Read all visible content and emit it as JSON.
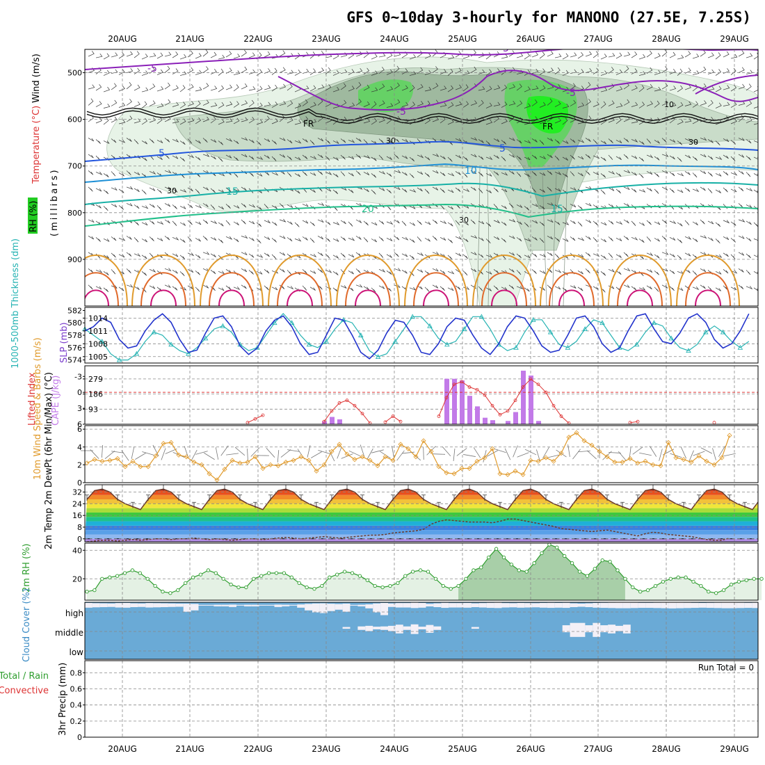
{
  "title": "GFS 0~10day 3-hourly for MANONO (27.5E, 7.25S)",
  "date_labels": [
    "20AUG",
    "21AUG",
    "22AUG",
    "23AUG",
    "24AUG",
    "25AUG",
    "26AUG",
    "27AUG",
    "28AUG",
    "29AUG"
  ],
  "colors": {
    "purple": "#8a1fb8",
    "teal": "#26b3b3",
    "blue": "#2233cc",
    "red": "#dd3333",
    "orange": "#e09a2b",
    "green": "#2e9d2e",
    "cloud": "#6aaad6",
    "cape": "#c27ae8",
    "rh_green": "#22cc22",
    "gray": "#808080"
  },
  "chart_data": [
    {
      "type": "contour",
      "id": "upper_air",
      "ylabel": "(millibars)",
      "legend_labels": [
        "Wind (m/s)",
        "Temperature (°C)",
        "RH (%)"
      ],
      "yticks": [
        500,
        600,
        700,
        800,
        900
      ],
      "ylim": [
        1000,
        450
      ],
      "temperature_labels": [
        "-5",
        "-5",
        "-5",
        "-5",
        "5",
        "5",
        "10",
        "15",
        "15",
        "20"
      ],
      "freezing_label": "FR",
      "rh_labels": [
        "30",
        "30",
        "30",
        "30",
        "10"
      ],
      "freezing_level_mb": 595
    },
    {
      "type": "line",
      "id": "slp_thickness",
      "series": [
        {
          "name": "SLP (mb)",
          "yticks": [
            1005,
            1008,
            1011,
            1014
          ],
          "ylim": [
            1003.5,
            1016.5
          ],
          "values": [
            1011,
            1012,
            1014,
            1013,
            1009,
            1007,
            1007.5,
            1011,
            1013.5,
            1015,
            1013,
            1009,
            1006,
            1006.5,
            1010.5,
            1014,
            1014.5,
            1012,
            1007.5,
            1005.5,
            1007,
            1011,
            1013.5,
            1014.5,
            1012,
            1008,
            1005.5,
            1006,
            1010,
            1014,
            1013.5,
            1010,
            1006,
            1004.5,
            1006.5,
            1010.5,
            1013.5,
            1013,
            1010,
            1006,
            1005.5,
            1008,
            1012,
            1014,
            1013.5,
            1010,
            1007,
            1005.5,
            1008,
            1012,
            1014.5,
            1014,
            1011,
            1007.5,
            1006,
            1006.5,
            1010,
            1014,
            1014.5,
            1012,
            1008,
            1006,
            1007,
            1011,
            1014.5,
            1015,
            1011.5,
            1008.5,
            1008,
            1010.5,
            1014,
            1015,
            1013,
            1009,
            1007,
            1008,
            1011,
            1015
          ]
        },
        {
          "name": "1000-500mb Thickness (dm)",
          "yticks": [
            574,
            576,
            578,
            580,
            582
          ],
          "ylim": [
            573.5,
            582.5
          ],
          "values": [
            579,
            578,
            577,
            575,
            574,
            574,
            575,
            577,
            578.5,
            578,
            576.5,
            575.5,
            575,
            576,
            577.5,
            579,
            579.5,
            578.5,
            576.5,
            575.5,
            576,
            578,
            580,
            581.5,
            580,
            578,
            576.5,
            576,
            577,
            579,
            580.5,
            580,
            578,
            575.5,
            574.5,
            575,
            577,
            579,
            581,
            581,
            579.5,
            577.5,
            576.5,
            577,
            579,
            581,
            581,
            579,
            576.5,
            575.5,
            576,
            578.5,
            580.5,
            580.5,
            578.5,
            576.5,
            576,
            577,
            579,
            580.5,
            580,
            578,
            576,
            575.5,
            576.5,
            578.5,
            580,
            579.5,
            577.5,
            576,
            575.5,
            576.5,
            578.5,
            579.5,
            578.5,
            577,
            576,
            577
          ]
        }
      ]
    },
    {
      "type": "bar",
      "id": "instability",
      "series": [
        {
          "name": "Lifted Index",
          "yticks": [
            -3,
            0,
            3,
            6
          ],
          "ylabels": [
            "-3",
            "0",
            "3",
            "6"
          ],
          "ylim": [
            -5,
            6
          ],
          "values": [],
          "segments": [
            {
              "start": 21,
              "values": [
                5.7,
                5,
                4.3
              ]
            },
            {
              "start": 31,
              "values": [
                5.5,
                3.5,
                2,
                1.5,
                2.5,
                4,
                5.8
              ]
            },
            {
              "start": 39,
              "values": [
                5.6,
                4.5,
                5.5
              ]
            },
            {
              "start": 46,
              "values": [
                4.5,
                1,
                -1.5,
                -2,
                -1,
                -0.5,
                0.5,
                2.5,
                4.2,
                3.5,
                1.5,
                -1,
                -2.5,
                -1.5,
                0,
                2.5,
                4.5,
                5.8
              ]
            },
            {
              "start": 71,
              "values": [
                5.7,
                5.5
              ]
            },
            {
              "start": 82,
              "values": [
                5.7
              ]
            }
          ]
        },
        {
          "name": "CAPE (J/kg)",
          "yticks": [
            93,
            186,
            279
          ],
          "ylim": [
            0,
            360
          ],
          "bars": [
            {
              "i": 31,
              "v": 18
            },
            {
              "i": 32,
              "v": 45
            },
            {
              "i": 33,
              "v": 30
            },
            {
              "i": 47,
              "v": 280
            },
            {
              "i": 48,
              "v": 280
            },
            {
              "i": 49,
              "v": 270
            },
            {
              "i": 50,
              "v": 175
            },
            {
              "i": 51,
              "v": 110
            },
            {
              "i": 52,
              "v": 40
            },
            {
              "i": 53,
              "v": 25
            },
            {
              "i": 55,
              "v": 20
            },
            {
              "i": 56,
              "v": 75
            },
            {
              "i": 57,
              "v": 330
            },
            {
              "i": 58,
              "v": 300
            },
            {
              "i": 59,
              "v": 20
            }
          ]
        }
      ]
    },
    {
      "type": "line",
      "id": "wind10m",
      "ylabel": "10m Wind Speed & Barbs (m/s)",
      "yticks": [
        0,
        2,
        4,
        6
      ],
      "ylim": [
        0,
        6.4
      ],
      "values": [
        2.2,
        2.6,
        2.4,
        2.5,
        2.7,
        1.8,
        2.4,
        1.8,
        1.8,
        3,
        4.4,
        4.5,
        3.1,
        2.9,
        2.3,
        2,
        1,
        0.3,
        1.5,
        2.5,
        2.2,
        2.3,
        2.9,
        1.6,
        2,
        1.9,
        2.3,
        2.5,
        2.9,
        2.5,
        1.3,
        2,
        3.5,
        4.3,
        3.2,
        2.6,
        2.9,
        2.5,
        1.9,
        2.9,
        2.5,
        4.3,
        3.8,
        2.9,
        4.7,
        3.5,
        1.8,
        1.1,
        1,
        1.6,
        1.6,
        2.4,
        2.8,
        3.8,
        1,
        0.9,
        1.3,
        0.9,
        2.5,
        2.4,
        2.8,
        2.4,
        3.3,
        5.1,
        5.6,
        4.7,
        4.2,
        3.5,
        2.9,
        2.3,
        2.3,
        2.7,
        2.2,
        2.4,
        2,
        1.9,
        4.5,
        2.8,
        2.6,
        2.3,
        3,
        2.4,
        2,
        2.8,
        5.3
      ]
    },
    {
      "type": "area",
      "id": "temp2m",
      "ylabel": "2m Temp 2m DewPt (6hr Min/Max) (°C)",
      "yticks": [
        0,
        8,
        16,
        24,
        32
      ],
      "ylabels": [
        "0",
        "8",
        "16",
        "24",
        "32"
      ],
      "ylim": [
        -2,
        37
      ],
      "temperature_cycle": [
        27,
        33,
        34,
        32,
        27,
        24,
        22,
        20
      ],
      "dewpoint": [
        -2,
        -1.5,
        -1,
        -1,
        -1.5,
        -1,
        -0.5,
        -1,
        -0.5,
        0,
        0,
        -0.5,
        0,
        0,
        0.5,
        0,
        -0.5,
        0,
        -0.5,
        -1,
        -0.5,
        0,
        0,
        -0.5,
        0,
        0.5,
        1,
        0.5,
        0,
        0.5,
        1,
        1.5,
        1,
        0.5,
        1,
        1.5,
        2,
        2.5,
        2.5,
        3,
        4,
        4.5,
        5,
        5.5,
        6.5,
        10,
        12,
        13,
        12.5,
        12,
        11.5,
        11.5,
        11.5,
        11,
        12,
        13.5,
        13.5,
        12.5,
        11.5,
        10.5,
        9.5,
        8.5,
        7,
        6.5,
        6,
        5.5,
        5,
        5.5,
        6,
        5,
        4,
        3,
        2,
        3.5,
        4.5,
        4,
        3,
        2.5,
        2,
        1.5,
        0.5,
        -0.5,
        -1,
        -1,
        0.5
      ]
    },
    {
      "type": "area",
      "id": "rh2m",
      "ylabel": "2m RH (%)",
      "yticks": [
        20,
        40
      ],
      "ylim": [
        5,
        45
      ],
      "values": [
        11,
        12,
        20,
        21,
        22,
        24,
        26,
        24,
        20,
        15,
        11,
        10,
        12,
        17,
        21,
        23,
        26,
        24,
        20,
        16,
        14,
        14,
        20,
        22,
        24,
        24,
        24,
        21,
        17,
        14,
        13,
        15,
        21,
        23,
        25,
        24,
        22,
        19,
        15,
        14,
        15,
        17,
        22,
        25,
        26,
        25,
        20,
        15,
        13,
        15,
        20,
        26,
        28,
        35,
        41,
        35,
        30,
        26,
        25,
        31,
        38,
        44,
        42,
        36,
        31,
        25,
        22,
        27,
        33,
        32,
        26,
        20,
        14,
        11,
        12,
        15,
        18,
        20,
        21,
        21,
        18,
        15,
        11,
        10,
        12,
        16,
        18,
        19,
        20,
        20
      ]
    },
    {
      "type": "bar",
      "id": "cloud_cover",
      "ylabel": "Cloud Cover (%)",
      "level_labels": [
        "high",
        "middle",
        "low"
      ],
      "high_clear_fraction": [
        0.75,
        0.65,
        0.6,
        0.55,
        0.7,
        0.75,
        0.6,
        0.55,
        0.7,
        0.65,
        0.6,
        0.55,
        0.5,
        0.5,
        0.4,
        0.05,
        0.05,
        0.1,
        0.1,
        0.15,
        0.05,
        0.1,
        0.1,
        0.05,
        0.05,
        0.15,
        0.1,
        0.05,
        0.2,
        0.4,
        0.55,
        0.6,
        0.45,
        0.35,
        0.5,
        0.05,
        0.1,
        0.25,
        0.55,
        0.75,
        0.55,
        0.7,
        0.7,
        0.85,
        0.75,
        0.4,
        0.6,
        0.8,
        0.7,
        0.7,
        0.75,
        0.6,
        0.7,
        0.8,
        0.85,
        0.7,
        0.65,
        0.75,
        0.7,
        0.65,
        0.75,
        0.8,
        0.75,
        0.8,
        0.6,
        0.5,
        0.6,
        0.75,
        0.8,
        0.85,
        0.9,
        0.9,
        0.85,
        0.8,
        0.8,
        0.85,
        0.9,
        0.95,
        0.9,
        0.85,
        0.8,
        0.75,
        0.8,
        0.85,
        0.9,
        0.9,
        0.85,
        0.8,
        0.85
      ],
      "mid_clear_fraction": [
        0,
        0,
        0,
        0,
        0,
        0,
        0,
        0,
        0,
        0,
        0,
        0,
        0,
        0,
        0,
        0,
        0,
        0,
        0,
        0,
        0,
        0,
        0,
        0,
        0,
        0,
        0,
        0,
        0,
        0,
        0,
        0,
        0,
        0,
        0.1,
        0,
        0.2,
        0.3,
        0.15,
        0.2,
        0.3,
        0.5,
        0.2,
        0.55,
        0.15,
        0.45,
        0.2,
        0,
        0,
        0,
        0,
        0.1,
        0,
        0,
        0,
        0,
        0,
        0,
        0,
        0,
        0,
        0,
        0,
        0.4,
        0.8,
        0.8,
        0.4,
        0.8,
        0.4,
        0.5,
        0.3,
        0.5,
        0,
        0,
        0,
        0,
        0,
        0,
        0,
        0,
        0,
        0,
        0,
        0,
        0,
        0,
        0,
        0,
        0
      ]
    },
    {
      "type": "bar",
      "id": "precip",
      "ylabel": "3hr Precip (mm)",
      "legend_labels": [
        "Total / Rain",
        "Convective"
      ],
      "yticks": [
        0,
        0.2,
        0.4,
        0.6,
        0.8
      ],
      "ylabels": [
        "0",
        "0.2",
        "0.4",
        "0.6",
        "0.8"
      ],
      "ylim": [
        0,
        0.95
      ],
      "values": [],
      "run_total_label": "Run Total = 0"
    }
  ]
}
